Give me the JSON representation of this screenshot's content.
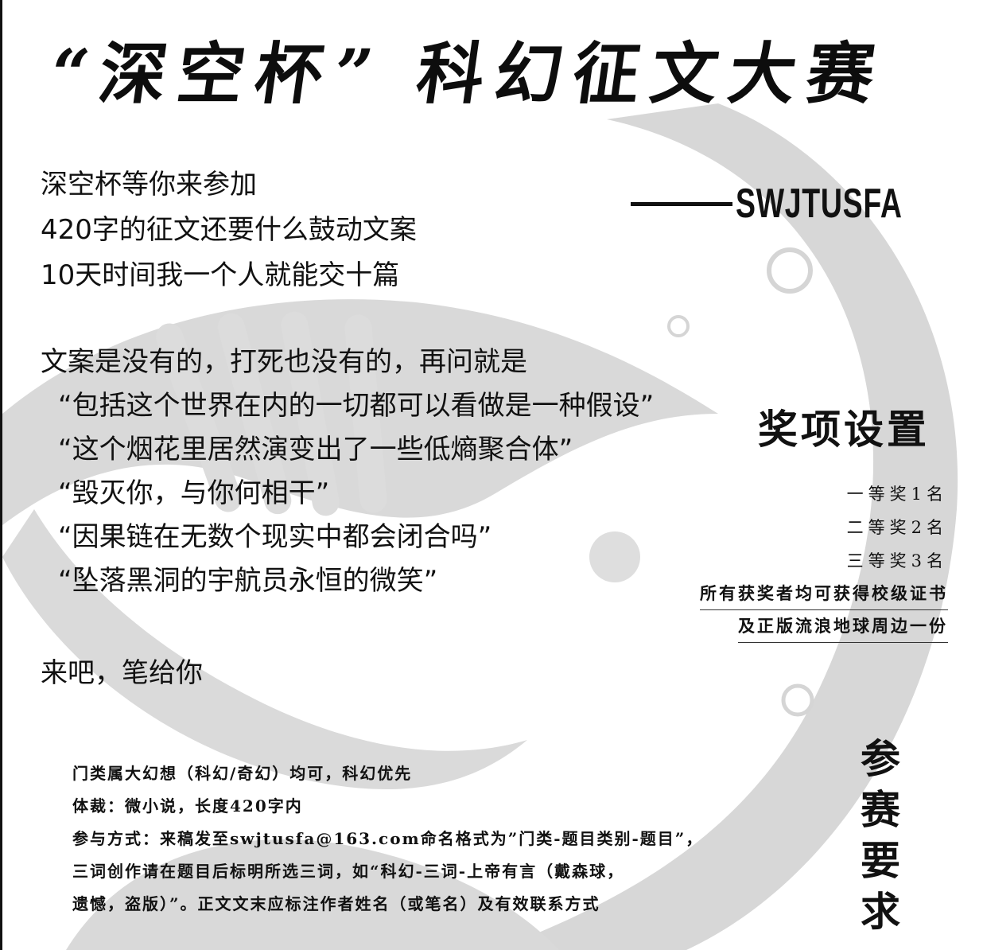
{
  "poster": {
    "title": "“深空杯” 科幻征文大赛",
    "intro_lines": [
      "深空杯等你来参加",
      "420字的征文还要什么鼓动文案",
      "10天时间我一个人就能交十篇"
    ],
    "signature": "SWJTUSFA",
    "body_lines": [
      "文案是没有的，打死也没有的，再问就是",
      "“包括这个世界在内的一切都可以看做是一种假设”",
      "“这个烟花里居然演变出了一些低熵聚合体”",
      "“毁灭你，与你何相干”",
      "“因果链在无数个现实中都会闭合吗”",
      "“坠落黑洞的宇航员永恒的微笑”"
    ],
    "closing": "来吧，笔给你",
    "awards": {
      "title": "奖项设置",
      "items": [
        "一等奖1名",
        "二等奖2名",
        "三等奖3名"
      ],
      "notes": [
        "所有获奖者均可获得校级证书",
        "及正版流浪地球周边一份"
      ]
    },
    "requirements": {
      "title_chars": [
        "参",
        "赛",
        "要",
        "求"
      ],
      "lines": [
        "门类属大幻想（科幻/奇幻）均可，科幻优先",
        "体裁：微小说，长度420字内",
        "参与方式：来稿发至swjtusfa@163.com命名格式为”门类-题目类别-题目”，",
        "三词创作请在题目后标明所选三词，如“科幻-三词-上帝有言（戴森球，",
        "遗憾，盗版）”。正文文末应标注作者姓名（或笔名）及有效联系方式"
      ]
    }
  }
}
